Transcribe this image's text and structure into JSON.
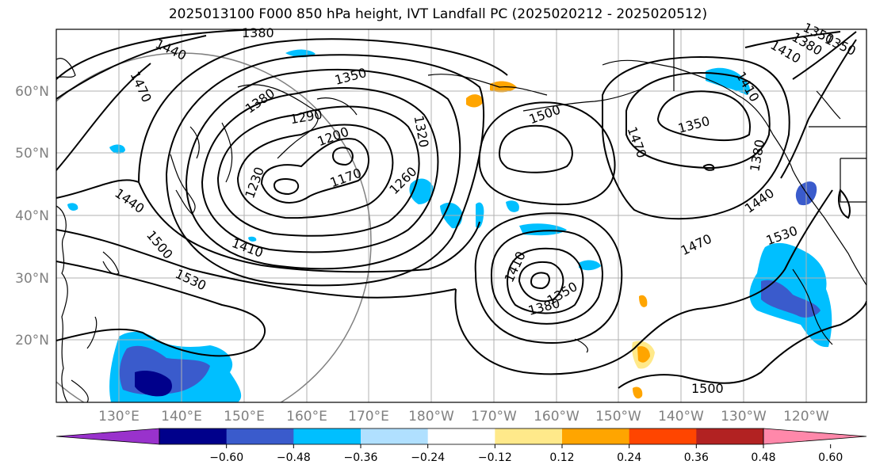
{
  "title": "2025013100 F000 850 hPa height, IVT Landfall PC (2025020212 - 2025020512)",
  "lat_labels": [
    "60°N",
    "50°N",
    "40°N",
    "30°N",
    "20°N"
  ],
  "lon_labels": [
    "130°E",
    "140°E",
    "150°E",
    "160°E",
    "170°E",
    "180°W",
    "170°W",
    "160°W",
    "150°W",
    "140°W",
    "130°W",
    "120°W"
  ],
  "contour_labels": [
    "1380",
    "1440",
    "1470",
    "1350",
    "1380",
    "1290",
    "1200",
    "1320",
    "1170",
    "1230",
    "1260",
    "1440",
    "1500",
    "1410",
    "1530",
    "1500",
    "1470",
    "1350",
    "1380",
    "1410",
    "1440",
    "1470",
    "1530",
    "1410",
    "1350",
    "1380",
    "1500",
    "1350",
    "1410",
    "1380",
    "1350"
  ],
  "colorbar": {
    "ticks": [
      "−0.60",
      "−0.48",
      "−0.36",
      "−0.24",
      "−0.12",
      "0.12",
      "0.24",
      "0.36",
      "0.48",
      "0.60"
    ],
    "colors": [
      "#9932cc",
      "#00008b",
      "#3a5bcc",
      "#00bfff",
      "#b0e0ff",
      "#ffffff",
      "#ffe98a",
      "#ffa500",
      "#ff4500",
      "#b22222",
      "#ff88aa"
    ]
  },
  "colors": {
    "neg_strong": "#3a5bcc",
    "neg_mid": "#00bfff",
    "neg_weak": "#b0e0ff",
    "neg_darkest": "#00008b",
    "pos_weak": "#ffe98a",
    "pos_mid": "#ffa500",
    "pos_strong": "#ff4500"
  }
}
